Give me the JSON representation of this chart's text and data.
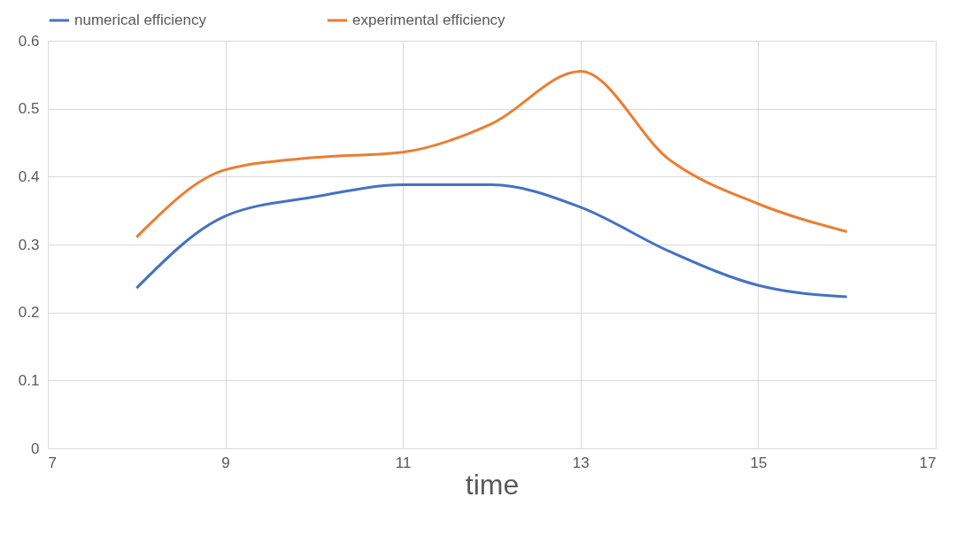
{
  "chart_data": {
    "type": "line",
    "xlabel": "time",
    "x": [
      8,
      9,
      10,
      11,
      12,
      13,
      14,
      15,
      16
    ],
    "series": [
      {
        "name": "numerical efficiency",
        "color": "#4472c4",
        "values": [
          0.236,
          0.342,
          0.37,
          0.388,
          0.388,
          0.355,
          0.29,
          0.24,
          0.223
        ]
      },
      {
        "name": "experimental efficiency",
        "color": "#ed7d31",
        "values": [
          0.311,
          0.41,
          0.428,
          0.436,
          0.478,
          0.555,
          0.425,
          0.36,
          0.319
        ]
      }
    ],
    "xlim": [
      7,
      17
    ],
    "xticks": [
      7,
      9,
      11,
      13,
      15,
      17
    ],
    "ylim": [
      0,
      0.6
    ],
    "yticks": [
      0,
      0.1,
      0.2,
      0.3,
      0.4,
      0.5,
      0.6
    ],
    "grid": true,
    "legend": "top",
    "marker": "none",
    "line_style": "solid"
  }
}
